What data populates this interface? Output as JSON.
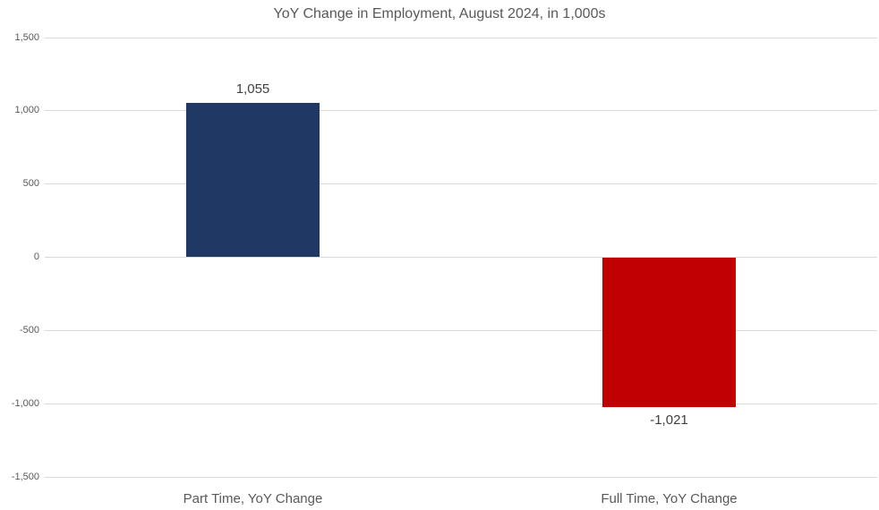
{
  "chart_data": {
    "type": "bar",
    "title": "YoY Change in Employment, August 2024, in 1,000s",
    "categories": [
      "Part Time, YoY Change",
      "Full Time, YoY Change"
    ],
    "values": [
      1055,
      -1021
    ],
    "value_labels": [
      "1,055",
      "-1,021"
    ],
    "series_colors": [
      "#1F3864",
      "#C00000"
    ],
    "xlabel": "",
    "ylabel": "",
    "ylim": [
      -1500,
      1500
    ],
    "ytick_interval": 500,
    "ytick_labels": [
      "1,500",
      "1,000",
      "500",
      "0",
      "-500",
      "-1,000",
      "-1,500"
    ],
    "grid": true,
    "legend": "none",
    "colors": {
      "gridline": "#D9D9D9",
      "title_text": "#595959",
      "axis_text": "#595959",
      "data_label_text": "#404040",
      "background": "#FFFFFF"
    }
  }
}
